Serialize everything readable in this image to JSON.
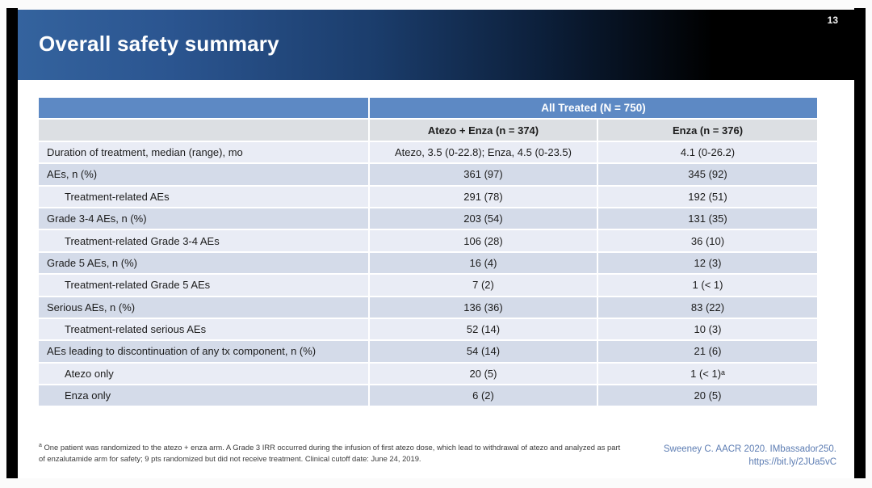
{
  "slide": {
    "title": "Overall safety summary",
    "page_number": "13"
  },
  "table": {
    "header": {
      "all_treated": "All Treated (N = 750)",
      "col_atezo_enza": "Atezo + Enza (n = 374)",
      "col_enza": "Enza (n = 376)"
    },
    "rows": [
      {
        "label": "Duration of treatment, median (range), mo",
        "atezo_enza": "Atezo, 3.5 (0-22.8); Enza, 4.5 (0-23.5)",
        "enza": "4.1 (0-26.2)"
      },
      {
        "label": "AEs, n (%)",
        "atezo_enza": "361 (97)",
        "enza": "345 (92)"
      },
      {
        "label": "Treatment-related AEs",
        "atezo_enza": "291 (78)",
        "enza": "192 (51)"
      },
      {
        "label": "Grade 3-4 AEs, n (%)",
        "atezo_enza": "203 (54)",
        "enza": "131 (35)"
      },
      {
        "label": "Treatment-related Grade 3-4 AEs",
        "atezo_enza": "106 (28)",
        "enza": "36 (10)"
      },
      {
        "label": "Grade 5 AEs, n (%)",
        "atezo_enza": "16 (4)",
        "enza": "12 (3)"
      },
      {
        "label": "Treatment-related Grade 5 AEs",
        "atezo_enza": "7 (2)",
        "enza": "1 (< 1)"
      },
      {
        "label": "Serious AEs, n (%)",
        "atezo_enza": "136 (36)",
        "enza": "83 (22)"
      },
      {
        "label": "Treatment-related serious AEs",
        "atezo_enza": "52 (14)",
        "enza": "10 (3)"
      },
      {
        "label": "AEs leading to discontinuation of any tx component, n (%)",
        "atezo_enza": "54 (14)",
        "enza": "21 (6)"
      },
      {
        "label": "Atezo only",
        "atezo_enza": "20 (5)",
        "enza": "1 (< 1)ᵃ"
      },
      {
        "label": "Enza only",
        "atezo_enza": "6 (2)",
        "enza": "20 (5)"
      }
    ]
  },
  "footnote": {
    "marker": "a",
    "text": " One patient was randomized to the atezo + enza arm. A Grade 3 IRR occurred during the infusion of first atezo dose, which lead to withdrawal of atezo and analyzed as part of enzalutamide arm for safety; 9 pts randomized but did not receive treatment. Clinical cutoff date: June 24, 2019."
  },
  "citation": {
    "line1": "Sweeney C. AACR 2020. IMbassador250.",
    "line2": "https://bit.ly/2JUa5vC"
  },
  "colors": {
    "band_blue": "#34639e",
    "band_black": "#000000",
    "header_blue": "#5d89c4",
    "header_gray": "#dcdfe3",
    "row_light": "#e9ecf5",
    "row_dark": "#d4dbe9",
    "citation_blue": "#5d7db3"
  }
}
